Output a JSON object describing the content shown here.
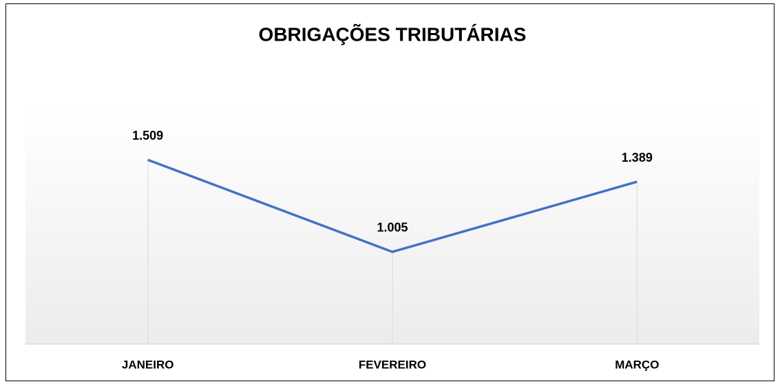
{
  "chart_data": {
    "type": "line",
    "title": "OBRIGAÇÕES TRIBUTÁRIAS",
    "categories": [
      "JANEIRO",
      "FEVEREIRO",
      "MARÇO"
    ],
    "values": [
      1509,
      1005,
      1389
    ],
    "value_labels": [
      "1.509",
      "1.005",
      "1.389"
    ],
    "color": "#4472c4",
    "ylim": [
      500,
      1800
    ]
  }
}
